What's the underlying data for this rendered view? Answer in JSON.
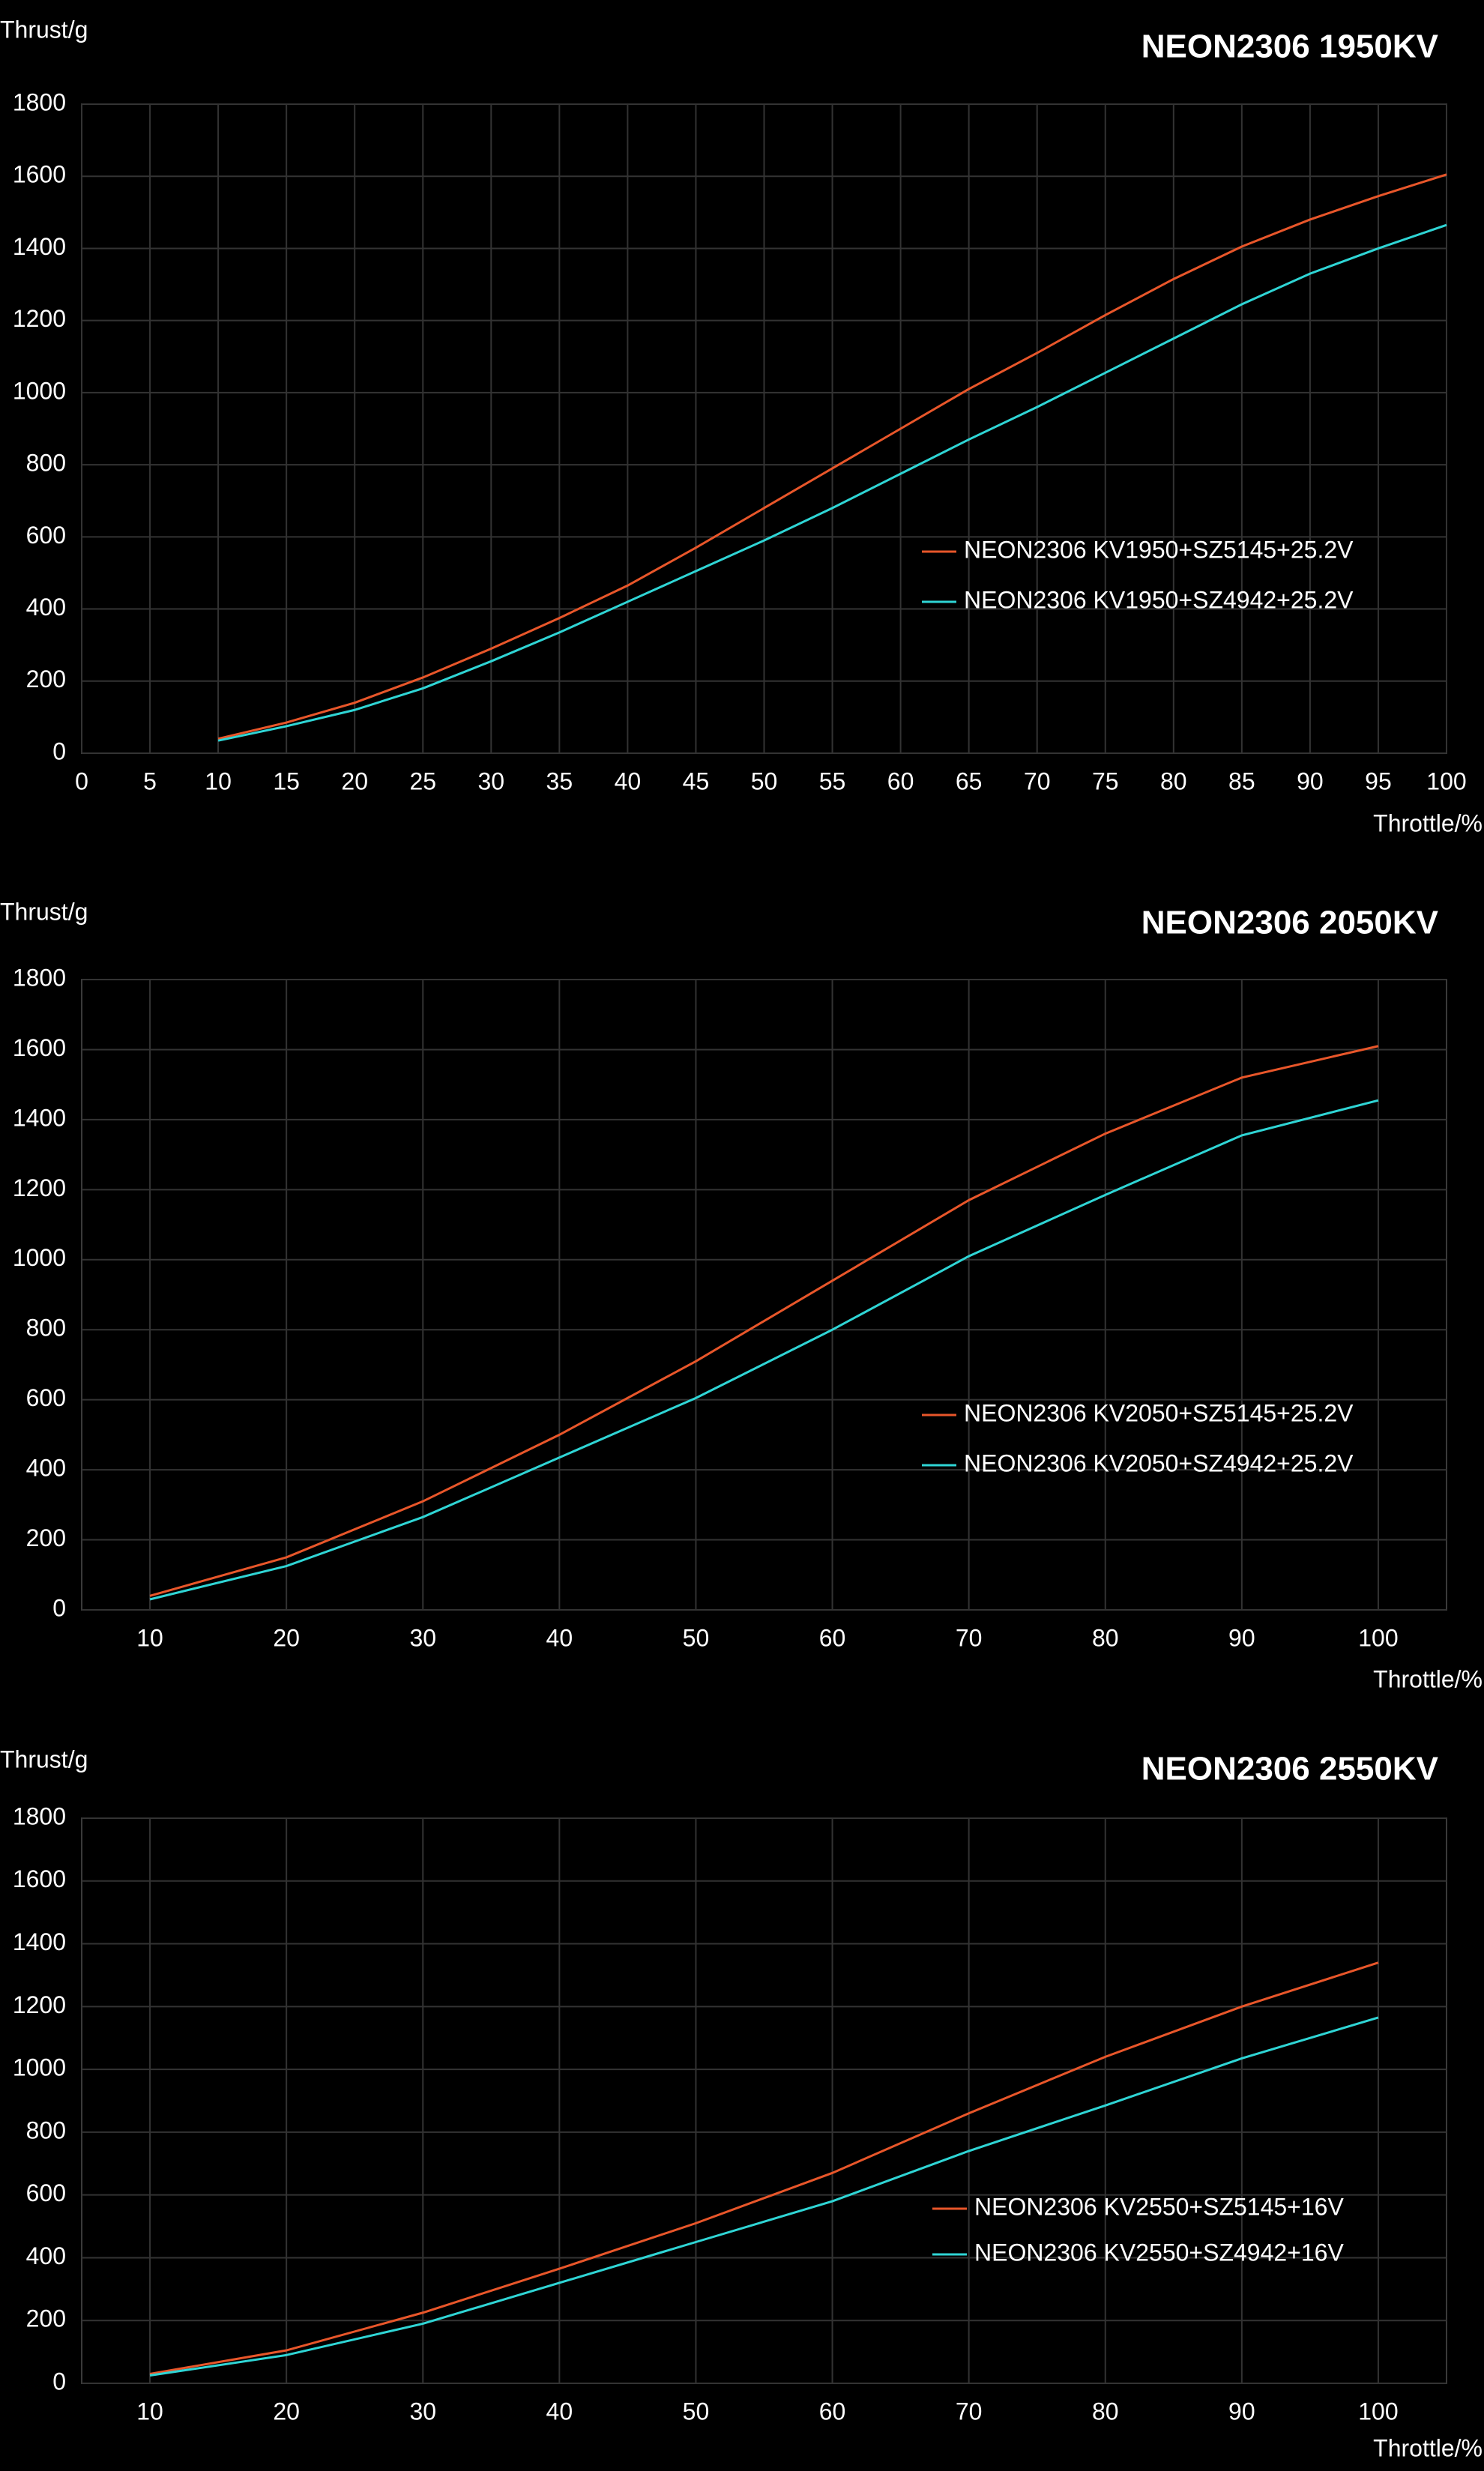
{
  "chart_data": [
    {
      "type": "line",
      "title": "NEON2306 1950KV",
      "y_label": "Thrust/g",
      "x_label": "Throttle/%",
      "x": [
        10,
        15,
        20,
        25,
        30,
        35,
        40,
        45,
        50,
        55,
        60,
        65,
        70,
        75,
        80,
        85,
        90,
        95,
        100
      ],
      "series": [
        {
          "name": "NEON2306 KV1950+SZ5145+25.2V",
          "color": "#e8562a",
          "values": [
            40,
            85,
            140,
            210,
            290,
            375,
            465,
            570,
            680,
            790,
            900,
            1010,
            1110,
            1215,
            1315,
            1405,
            1480,
            1545,
            1605
          ]
        },
        {
          "name": "NEON2306 KV1950+SZ4942+25.2V",
          "color": "#2fd5d5",
          "values": [
            35,
            75,
            120,
            180,
            255,
            335,
            420,
            505,
            590,
            680,
            775,
            870,
            960,
            1055,
            1150,
            1245,
            1330,
            1400,
            1465
          ]
        }
      ],
      "xlim": [
        0,
        100
      ],
      "xticks": [
        0,
        5,
        10,
        15,
        20,
        25,
        30,
        35,
        40,
        45,
        50,
        55,
        60,
        65,
        70,
        75,
        80,
        85,
        90,
        95,
        100
      ],
      "ylim": [
        0,
        1800
      ],
      "yticks": [
        0,
        200,
        400,
        600,
        800,
        1000,
        1200,
        1400,
        1600,
        1800
      ],
      "grid": true,
      "legend": "right"
    },
    {
      "type": "line",
      "title": "NEON2306 2050KV",
      "y_label": "Thrust/g",
      "x_label": "Throttle/%",
      "x": [
        10,
        20,
        30,
        40,
        50,
        60,
        70,
        80,
        90,
        100
      ],
      "series": [
        {
          "name": "NEON2306 KV2050+SZ5145+25.2V",
          "color": "#e8562a",
          "values": [
            40,
            150,
            310,
            500,
            710,
            940,
            1170,
            1360,
            1520,
            1610
          ]
        },
        {
          "name": "NEON2306 KV2050+SZ4942+25.2V",
          "color": "#2fd5d5",
          "values": [
            30,
            125,
            265,
            435,
            605,
            800,
            1010,
            1185,
            1355,
            1455
          ]
        }
      ],
      "xlim": [
        5,
        105
      ],
      "xticks": [
        10,
        20,
        30,
        40,
        50,
        60,
        70,
        80,
        90,
        100
      ],
      "ylim": [
        0,
        1800
      ],
      "yticks": [
        0,
        200,
        400,
        600,
        800,
        1000,
        1200,
        1400,
        1600,
        1800
      ],
      "grid": true,
      "legend": "right"
    },
    {
      "type": "line",
      "title": "NEON2306 2550KV",
      "y_label": "Thrust/g",
      "x_label": "Throttle/%",
      "x": [
        10,
        20,
        30,
        40,
        50,
        60,
        70,
        80,
        90,
        100
      ],
      "series": [
        {
          "name": "NEON2306 KV2550+SZ5145+16V",
          "color": "#e8562a",
          "values": [
            30,
            105,
            225,
            365,
            510,
            670,
            860,
            1040,
            1200,
            1340
          ]
        },
        {
          "name": "NEON2306 KV2550+SZ4942+16V",
          "color": "#2fd5d5",
          "values": [
            25,
            90,
            190,
            320,
            450,
            580,
            740,
            885,
            1035,
            1165
          ]
        }
      ],
      "xlim": [
        5,
        105
      ],
      "xticks": [
        10,
        20,
        30,
        40,
        50,
        60,
        70,
        80,
        90,
        100
      ],
      "ylim": [
        0,
        1800
      ],
      "yticks": [
        0,
        200,
        400,
        600,
        800,
        1000,
        1200,
        1400,
        1600,
        1800
      ],
      "grid": true,
      "legend": "right"
    }
  ]
}
